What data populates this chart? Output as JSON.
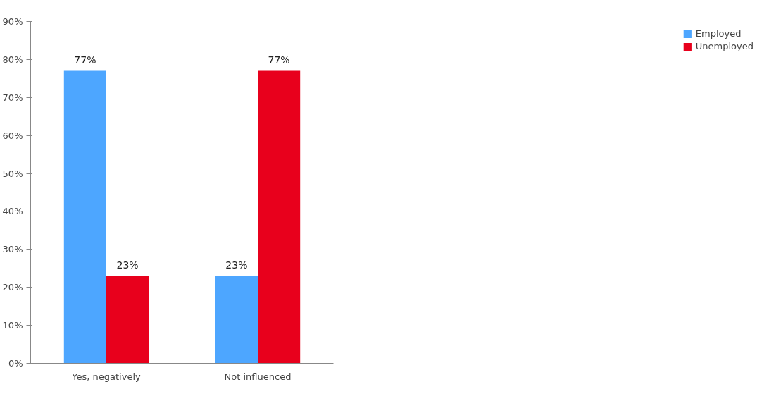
{
  "chart_data": {
    "type": "bar",
    "categories": [
      "Yes, negatively",
      "Not influenced"
    ],
    "series": [
      {
        "name": "Employed",
        "color": "#4da6ff",
        "values": [
          77,
          23
        ],
        "value_labels": [
          "77%",
          "23%"
        ]
      },
      {
        "name": "Unemployed",
        "color": "#e8001c",
        "values": [
          23,
          77
        ],
        "value_labels": [
          "23%",
          "77%"
        ]
      }
    ],
    "ylim": [
      0,
      90
    ],
    "yticks": [
      {
        "value": 0,
        "label": "0%"
      },
      {
        "value": 10,
        "label": "10%"
      },
      {
        "value": 20,
        "label": "20%"
      },
      {
        "value": 30,
        "label": "30%"
      },
      {
        "value": 40,
        "label": "40%"
      },
      {
        "value": 50,
        "label": "50%"
      },
      {
        "value": 60,
        "label": "60%"
      },
      {
        "value": 70,
        "label": "70%"
      },
      {
        "value": 80,
        "label": "80%"
      },
      {
        "value": 90,
        "label": "90%"
      }
    ],
    "grid": false,
    "legend": "right"
  }
}
